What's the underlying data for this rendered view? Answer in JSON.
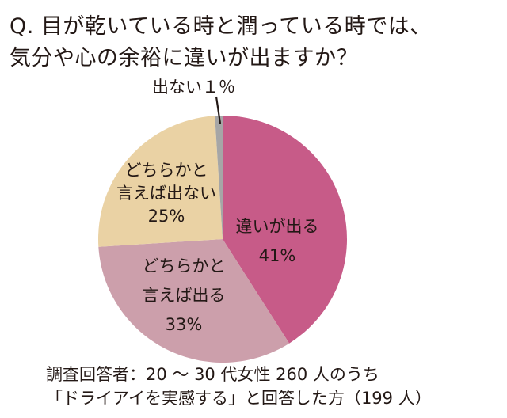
{
  "title": {
    "line1": "Q. 目が乾いている時と潤っている時では、",
    "line2": "気分や心の余裕に違いが出ますか？"
  },
  "labels": {
    "differ_line1": "違いが出る",
    "differ_pct": "41%",
    "somewhat_differ_line1": "どちらかと",
    "somewhat_differ_line2": "言えば出る",
    "somewhat_differ_pct": "33%",
    "somewhat_not_line1": "どちらかと",
    "somewhat_not_line2": "言えば出ない",
    "somewhat_not_pct": "25%",
    "no_diff": "出ない１％"
  },
  "footnote": {
    "line1": "調査回答者：20 ～ 30 代女性 260 人のうち",
    "line2": "「ドライアイを実感する」と回答した方（199 人）"
  },
  "colors": {
    "differ": "#c75b88",
    "somewhat_differ": "#cc9fab",
    "somewhat_not": "#ead2a4",
    "no_diff": "#a6a6a6"
  },
  "chart_data": {
    "type": "pie",
    "title": "Q. 目が乾いている時と潤っている時では、気分や心の余裕に違いが出ますか？",
    "categories": [
      "違いが出る",
      "どちらかと言えば出る",
      "どちらかと言えば出ない",
      "出ない"
    ],
    "values": [
      41,
      33,
      25,
      1
    ],
    "unit": "%",
    "start_angle": "12 o'clock, clockwise",
    "colors": [
      "#c75b88",
      "#cc9fab",
      "#ead2a4",
      "#a6a6a6"
    ],
    "annotation": "調査回答者：20～30代女性260人のうち「ドライアイを実感する」と回答した方（199人）"
  }
}
